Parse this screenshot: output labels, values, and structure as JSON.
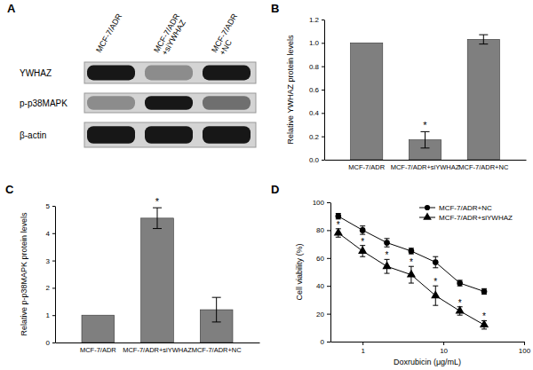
{
  "blot": {
    "panel_label": "A",
    "lanes": [
      [
        "MCF-7/ADR"
      ],
      [
        "MCF-7/ADR",
        "+siYWHAZ"
      ],
      [
        "MCF-7/ADR",
        "+NC"
      ]
    ],
    "rows": [
      {
        "name": "YWHAZ",
        "intensity": [
          0.95,
          0.35,
          0.95
        ]
      },
      {
        "name": "p-p38MAPK",
        "intensity": [
          0.35,
          0.95,
          0.5
        ]
      },
      {
        "name": "β-actin",
        "intensity": [
          0.95,
          0.95,
          0.95
        ]
      }
    ]
  },
  "chart_data": [
    {
      "type": "bar",
      "panel_label": "B",
      "y_label": "Relative YWHAZ protein levels",
      "categories": [
        "MCF-7/ADR",
        "MCF-7/ADR+siYWHAZ",
        "MCF-7/ADR+NC"
      ],
      "values": [
        1,
        0.17,
        1.03
      ],
      "errors": [
        0,
        0.07,
        0.04
      ],
      "significance": [
        null,
        "*",
        null
      ],
      "color": "#7f7f7f",
      "ylim": [
        0,
        1.2
      ],
      "yticks": [
        {
          "value": 0,
          "label": "0.0"
        },
        0.2,
        0.4,
        0.6,
        0.8,
        {
          "value": 1,
          "label": "1.0"
        },
        1.2
      ]
    },
    {
      "type": "bar",
      "panel_label": "C",
      "y_label": "Relative p-p38MAPK protein levels",
      "categories": [
        "MCF-7/ADR",
        "MCF-7/ADR+siYWHAZ",
        "MCF-7/ADR+NC"
      ],
      "values": [
        1,
        4.55,
        1.2
      ],
      "errors": [
        0,
        0.38,
        0.45
      ],
      "significance": [
        null,
        "*",
        null
      ],
      "color": "#7f7f7f",
      "ylim": [
        0,
        5
      ],
      "yticks": [
        0,
        1,
        2,
        3,
        4,
        5
      ]
    },
    {
      "type": "line",
      "panel_label": "D",
      "x_label": "Doxrubicin (μg/mL)",
      "y_label": "Cell viability (%)",
      "log": "x",
      "x": [
        0.5,
        1,
        2,
        4,
        8,
        16,
        32
      ],
      "xlim": [
        0.4,
        100
      ],
      "xticks": [
        1,
        10,
        100
      ],
      "ylim": [
        0,
        100
      ],
      "yticks": [
        0,
        20,
        40,
        60,
        80,
        100
      ],
      "legend": "upper right",
      "series": [
        {
          "name": "MCF-7/ADR+NC",
          "color": "#000000",
          "marker": "circle",
          "values": [
            90,
            80,
            71,
            65,
            57,
            42,
            36
          ],
          "errors": [
            2,
            3,
            3,
            2,
            4,
            2,
            2
          ]
        },
        {
          "name": "MCF-7/ADR+siYWHAZ",
          "color": "#000000",
          "marker": "triangle",
          "values": [
            78,
            65,
            54,
            48,
            33,
            22,
            12
          ],
          "errors": [
            3,
            4,
            5,
            6,
            7,
            3,
            3
          ],
          "significance": [
            "*",
            "*",
            "*",
            "*",
            "*",
            "*",
            "*"
          ]
        }
      ]
    }
  ]
}
